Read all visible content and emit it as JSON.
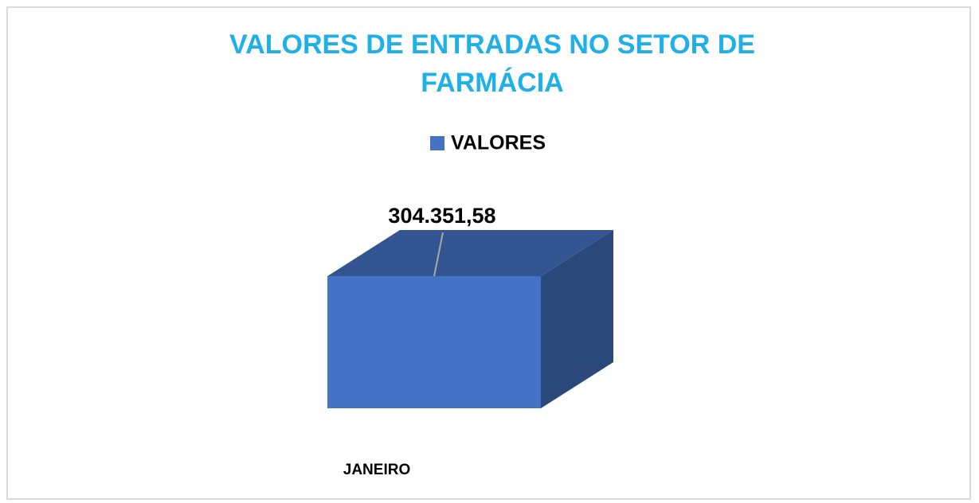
{
  "chart_data": {
    "type": "bar3d",
    "title": "VALORES DE ENTRADAS NO SETOR DE FARMÁCIA",
    "categories": [
      "JANEIRO"
    ],
    "series": [
      {
        "name": "VALORES",
        "color": "#4472c4",
        "values": [
          304351.58
        ],
        "value_labels": [
          "304.351,58"
        ]
      }
    ],
    "legend": "top"
  }
}
